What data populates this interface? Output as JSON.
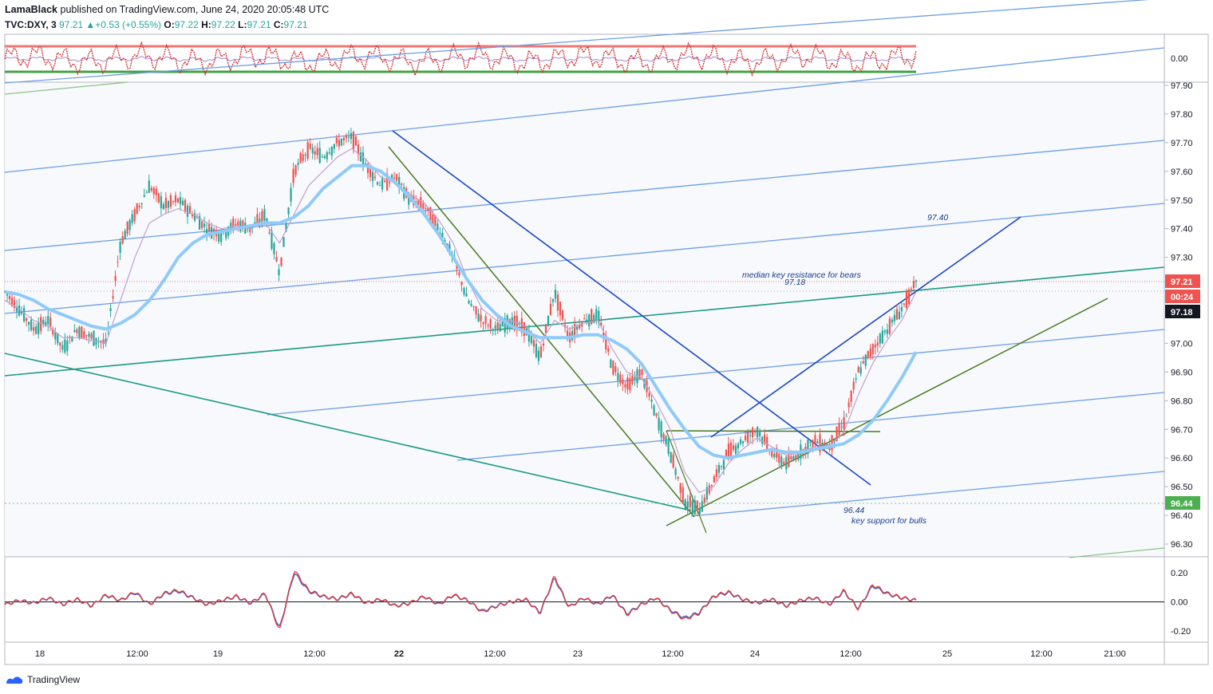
{
  "header": {
    "author": "LamaBlack",
    "published_text": "published on TradingView.com, June 24, 2020 20:05:48 UTC",
    "symbol": "TVC:DXY, 3",
    "last": "97.21",
    "change": "+0.53 (+0.55%)",
    "open_label": "O:",
    "open": "97.22",
    "high_label": "H:",
    "high": "97.22",
    "low_label": "L:",
    "low": "97.21",
    "close_label": "C:",
    "close": "97.21"
  },
  "footer": {
    "brand": "TradingView"
  },
  "colors": {
    "up": "#26a69a",
    "down": "#ef5350",
    "channel_blue": "#6b9ee6",
    "teal": "#1a9a86",
    "green_line": "#4a7a1e",
    "dark_blue": "#1c47c4",
    "ma_light": "#90caf9",
    "ma_pink": "#c59fd0",
    "price_tag": "#ef5350",
    "support_tag": "#4caf50",
    "dark_tag": "#131722"
  },
  "chart_data": [
    {
      "type": "line",
      "title": "",
      "pane": "oscillator-top",
      "y_tick_labels": [
        "0.00"
      ],
      "series": [
        {
          "values": [
            0.0,
            0.04,
            -0.03,
            0.05,
            -0.04,
            0.03,
            -0.05,
            0.04,
            -0.02,
            0.05,
            -0.04,
            0.03,
            -0.03,
            0.05,
            -0.05,
            0.04
          ]
        }
      ]
    },
    {
      "type": "line",
      "title": "",
      "pane": "main",
      "symbol": "TVC:DXY, 3",
      "ylim": [
        96.25,
        97.92
      ],
      "y_tick_labels": [
        "97.90",
        "97.80",
        "97.70",
        "97.60",
        "97.50",
        "97.40",
        "97.30",
        "97.00",
        "96.90",
        "96.80",
        "96.70",
        "96.60",
        "96.50",
        "96.40",
        "96.30"
      ],
      "x_tick_labels": [
        "18",
        "12:00",
        "19",
        "12:00",
        "22",
        "12:00",
        "23",
        "12:00",
        "24",
        "12:00",
        "25",
        "12:00",
        "21:00"
      ],
      "x": [
        0,
        1,
        2,
        3,
        4,
        5,
        6,
        7,
        8,
        9,
        10,
        11,
        12,
        13,
        14,
        15,
        16,
        17,
        18,
        19,
        20,
        21,
        22,
        23,
        24,
        25,
        26,
        27,
        28,
        29,
        30,
        31,
        32,
        33,
        34,
        35,
        36,
        37,
        38,
        39,
        40,
        41,
        42,
        43,
        44,
        45,
        46,
        47,
        48,
        49,
        50,
        51,
        52,
        53,
        54,
        55,
        56,
        57,
        58,
        59,
        60,
        61,
        62,
        63
      ],
      "price": [
        97.18,
        97.12,
        97.05,
        97.08,
        96.98,
        97.05,
        97.02,
        97.0,
        97.35,
        97.45,
        97.55,
        97.48,
        97.5,
        97.45,
        97.4,
        97.38,
        97.42,
        97.4,
        97.45,
        97.25,
        97.6,
        97.68,
        97.65,
        97.7,
        97.72,
        97.62,
        97.55,
        97.58,
        97.5,
        97.48,
        97.4,
        97.3,
        97.15,
        97.08,
        97.05,
        97.08,
        97.05,
        96.95,
        97.18,
        97.02,
        97.08,
        97.1,
        96.92,
        96.85,
        96.9,
        96.75,
        96.62,
        96.45,
        96.42,
        96.52,
        96.62,
        96.66,
        96.7,
        96.62,
        96.58,
        96.62,
        96.66,
        96.64,
        96.72,
        96.9,
        96.98,
        97.05,
        97.12,
        97.21
      ],
      "ma_fast": [
        97.15,
        97.12,
        97.08,
        97.06,
        97.02,
        97.02,
        97.01,
        97.0,
        97.15,
        97.3,
        97.42,
        97.45,
        97.47,
        97.45,
        97.42,
        97.4,
        97.41,
        97.4,
        97.42,
        97.35,
        97.45,
        97.55,
        97.6,
        97.65,
        97.68,
        97.64,
        97.58,
        97.56,
        97.52,
        97.49,
        97.43,
        97.35,
        97.22,
        97.12,
        97.08,
        97.08,
        97.06,
        97.0,
        97.08,
        97.05,
        97.07,
        97.08,
        96.98,
        96.9,
        96.88,
        96.8,
        96.7,
        96.55,
        96.48,
        96.5,
        96.58,
        96.63,
        96.67,
        96.64,
        96.61,
        96.62,
        96.64,
        96.64,
        96.69,
        96.82,
        96.93,
        97.01,
        97.08,
        97.18
      ],
      "ma_slow": [
        97.18,
        97.17,
        97.15,
        97.12,
        97.1,
        97.08,
        97.06,
        97.05,
        97.07,
        97.1,
        97.15,
        97.22,
        97.3,
        97.35,
        97.38,
        97.39,
        97.4,
        97.41,
        97.42,
        97.42,
        97.44,
        97.48,
        97.54,
        97.58,
        97.62,
        97.62,
        97.6,
        97.56,
        97.51,
        97.45,
        97.38,
        97.3,
        97.22,
        97.15,
        97.1,
        97.06,
        97.04,
        97.02,
        97.02,
        97.02,
        97.03,
        97.03,
        97.01,
        96.98,
        96.93,
        96.85,
        96.77,
        96.7,
        96.64,
        96.61,
        96.6,
        96.61,
        96.62,
        96.63,
        96.62,
        96.62,
        96.63,
        96.64,
        96.65,
        96.68,
        96.73,
        96.8,
        96.88,
        96.97
      ],
      "annotations": [
        {
          "text": "97.40"
        },
        {
          "text": "median key resistance for bears"
        },
        {
          "text": "97.18"
        },
        {
          "text": "96.44"
        },
        {
          "text": "key support for bulls"
        }
      ],
      "price_tags": [
        {
          "text": "97.21",
          "value": 97.21
        },
        {
          "text": "00:24",
          "value": 97.15
        },
        {
          "text": "97.18",
          "value": 97.18
        },
        {
          "text": "96.44",
          "value": 96.44
        }
      ]
    },
    {
      "type": "line",
      "title": "",
      "pane": "oscillator-bottom",
      "ylim": [
        -0.24,
        0.24
      ],
      "y_tick_labels": [
        "0.20",
        "0.00",
        "-0.20"
      ],
      "series": [
        {
          "values": [
            -0.02,
            0.01,
            -0.01,
            0.03,
            -0.02,
            0.02,
            -0.03,
            0.05,
            0.01,
            0.07,
            -0.02,
            0.06,
            0.08,
            0.03,
            -0.02,
            0.01,
            0.04,
            -0.01,
            0.06,
            -0.2,
            0.22,
            0.08,
            0.04,
            0.02,
            0.06,
            -0.01,
            0.02,
            -0.03,
            -0.01,
            0.04,
            -0.02,
            0.05,
            0.01,
            -0.07,
            -0.03,
            0.0,
            0.02,
            -0.08,
            0.18,
            -0.04,
            0.03,
            -0.02,
            0.05,
            -0.09,
            -0.02,
            0.03,
            -0.06,
            -0.12,
            -0.08,
            0.04,
            0.07,
            0.02,
            -0.01,
            0.02,
            -0.03,
            0.01,
            0.03,
            -0.02,
            0.08,
            -0.05,
            0.12,
            0.06,
            0.03,
            0.01
          ]
        }
      ]
    }
  ]
}
